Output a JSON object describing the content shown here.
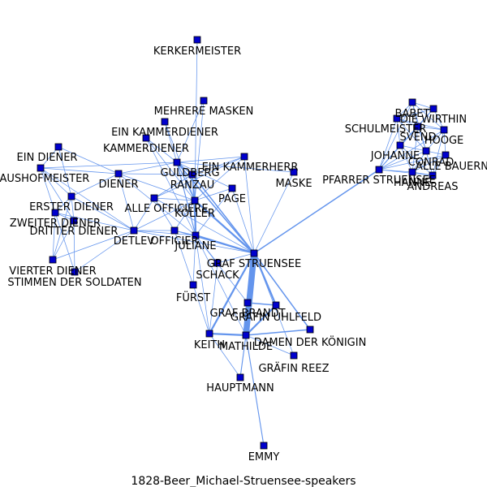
{
  "caption": "1828-Beer_Michael-Struensee-speakers",
  "colors": {
    "edge": "#6495ED",
    "node_fill": "#0000CD",
    "node_stroke": "#000000",
    "background": "#ffffff"
  },
  "nodes": [
    {
      "id": "kerkermeister",
      "label": "KERKERMEISTER"
    },
    {
      "id": "mehrere-masken",
      "label": "MEHRERE MASKEN"
    },
    {
      "id": "ein-kammerdiener",
      "label": "EIN KAMMERDIENER"
    },
    {
      "id": "kammerdiener",
      "label": "KAMMERDIENER"
    },
    {
      "id": "ein-diener",
      "label": "EIN DIENER"
    },
    {
      "id": "haushofmeister",
      "label": "HAUSHOFMEISTER"
    },
    {
      "id": "guldberg",
      "label": "GULDBERG"
    },
    {
      "id": "ein-kammerherr",
      "label": "EIN KAMMERHERR"
    },
    {
      "id": "diener",
      "label": "DIENER"
    },
    {
      "id": "ranzau",
      "label": "RANZAU"
    },
    {
      "id": "maske",
      "label": "MASKE"
    },
    {
      "id": "page",
      "label": "PAGE"
    },
    {
      "id": "erster-diener",
      "label": "ERSTER DIENER"
    },
    {
      "id": "alle-officiere",
      "label": "ALLE OFFICIERE"
    },
    {
      "id": "koller",
      "label": "KÖLLER"
    },
    {
      "id": "zweiter-diener",
      "label": "ZWEITER DIENER"
    },
    {
      "id": "dritter-diener",
      "label": "DRITTER DIENER"
    },
    {
      "id": "detlev",
      "label": "DETLEV"
    },
    {
      "id": "officier",
      "label": "OFFICIER"
    },
    {
      "id": "juliane",
      "label": "JULIANE"
    },
    {
      "id": "graf-struensee",
      "label": "GRAF STRUENSEE"
    },
    {
      "id": "vierter-diener",
      "label": "VIERTER DIENER"
    },
    {
      "id": "stimmen-der-soldaten",
      "label": "STIMMEN DER SOLDATEN"
    },
    {
      "id": "schack",
      "label": "SCHACK"
    },
    {
      "id": "furst",
      "label": "FÜRST"
    },
    {
      "id": "graf-brandt",
      "label": "GRAF BRANDT"
    },
    {
      "id": "grafin-uhlfeld",
      "label": "GRÄFIN UHLFELD"
    },
    {
      "id": "keith",
      "label": "KEITH"
    },
    {
      "id": "mathilde",
      "label": "MATHILDE"
    },
    {
      "id": "damen-der-konigin",
      "label": "DAMEN DER KÖNIGIN"
    },
    {
      "id": "grafin-reez",
      "label": "GRÄFIN REEZ"
    },
    {
      "id": "hauptmann",
      "label": "HAUPTMANN"
    },
    {
      "id": "emmy",
      "label": "EMMY"
    },
    {
      "id": "babet",
      "label": "BABET"
    },
    {
      "id": "die-wirthin",
      "label": "DIE WIRTHIN"
    },
    {
      "id": "schulmeister",
      "label": "SCHULMEISTER"
    },
    {
      "id": "svend",
      "label": "SVEND"
    },
    {
      "id": "hooge",
      "label": "HOOGE"
    },
    {
      "id": "johanne",
      "label": "JOHANNE"
    },
    {
      "id": "conrad",
      "label": "CONRAD"
    },
    {
      "id": "alle-bauern",
      "label": "ALLE BAUERN"
    },
    {
      "id": "pfarrer-struensee",
      "label": "PFARRER STRUENSEE"
    },
    {
      "id": "hanne",
      "label": "HANNE"
    },
    {
      "id": "andreas",
      "label": "ANDREAS"
    }
  ],
  "edges": [
    {
      "source": "graf-struensee",
      "target": "mathilde",
      "weight": 10
    },
    {
      "source": "graf-struensee",
      "target": "graf-brandt",
      "weight": 4
    },
    {
      "source": "graf-brandt",
      "target": "mathilde",
      "weight": 4
    },
    {
      "source": "graf-struensee",
      "target": "keith",
      "weight": 3
    },
    {
      "source": "keith",
      "target": "mathilde",
      "weight": 3
    },
    {
      "source": "graf-struensee",
      "target": "grafin-uhlfeld",
      "weight": 3
    },
    {
      "source": "mathilde",
      "target": "grafin-uhlfeld",
      "weight": 3
    },
    {
      "source": "graf-brandt",
      "target": "grafin-uhlfeld",
      "weight": 2
    },
    {
      "source": "graf-struensee",
      "target": "juliane",
      "weight": 3
    },
    {
      "source": "graf-struensee",
      "target": "koller",
      "weight": 3
    },
    {
      "source": "koller",
      "target": "juliane",
      "weight": 3
    },
    {
      "source": "graf-struensee",
      "target": "ranzau",
      "weight": 2
    },
    {
      "source": "graf-struensee",
      "target": "guldberg",
      "weight": 2
    },
    {
      "source": "graf-struensee",
      "target": "pfarrer-struensee",
      "weight": 2
    },
    {
      "source": "graf-struensee",
      "target": "damen-der-konigin",
      "weight": 2
    },
    {
      "source": "mathilde",
      "target": "damen-der-konigin",
      "weight": 2
    },
    {
      "source": "mathilde",
      "target": "emmy",
      "weight": 1.5
    },
    {
      "source": "mathilde",
      "target": "hauptmann",
      "weight": 1.5
    },
    {
      "source": "mathilde",
      "target": "grafin-reez",
      "weight": 1
    },
    {
      "source": "keith",
      "target": "hauptmann",
      "weight": 1
    },
    {
      "source": "graf-struensee",
      "target": "schack",
      "weight": 1
    },
    {
      "source": "graf-struensee",
      "target": "page",
      "weight": 1
    },
    {
      "source": "graf-struensee",
      "target": "maske",
      "weight": 1
    },
    {
      "source": "graf-struensee",
      "target": "ein-kammerherr",
      "weight": 1
    },
    {
      "source": "graf-struensee",
      "target": "officier",
      "weight": 1
    },
    {
      "source": "graf-struensee",
      "target": "detlev",
      "weight": 1
    },
    {
      "source": "graf-struensee",
      "target": "alle-officiere",
      "weight": 1
    },
    {
      "source": "graf-struensee",
      "target": "grafin-reez",
      "weight": 1
    },
    {
      "source": "juliane",
      "target": "keith",
      "weight": 1
    },
    {
      "source": "juliane",
      "target": "mathilde",
      "weight": 1
    },
    {
      "source": "juliane",
      "target": "graf-brandt",
      "weight": 1
    },
    {
      "source": "juliane",
      "target": "furst",
      "weight": 1
    },
    {
      "source": "juliane",
      "target": "schack",
      "weight": 1
    },
    {
      "source": "juliane",
      "target": "ranzau",
      "weight": 1.5
    },
    {
      "source": "juliane",
      "target": "guldberg",
      "weight": 1.5
    },
    {
      "source": "juliane",
      "target": "officier",
      "weight": 1
    },
    {
      "source": "juliane",
      "target": "detlev",
      "weight": 1
    },
    {
      "source": "koller",
      "target": "ranzau",
      "weight": 1.5
    },
    {
      "source": "koller",
      "target": "guldberg",
      "weight": 1.5
    },
    {
      "source": "koller",
      "target": "alle-officiere",
      "weight": 1
    },
    {
      "source": "koller",
      "target": "officier",
      "weight": 1
    },
    {
      "source": "koller",
      "target": "page",
      "weight": 1
    },
    {
      "source": "ranzau",
      "target": "guldberg",
      "weight": 1.5
    },
    {
      "source": "ranzau",
      "target": "ein-kammerherr",
      "weight": 1
    },
    {
      "source": "ranzau",
      "target": "kammerdiener",
      "weight": 1
    },
    {
      "source": "ranzau",
      "target": "diener",
      "weight": 1
    },
    {
      "source": "ranzau",
      "target": "alle-officiere",
      "weight": 1
    },
    {
      "source": "guldberg",
      "target": "ein-kammerdiener",
      "weight": 1
    },
    {
      "source": "guldberg",
      "target": "mehrere-masken",
      "weight": 1
    },
    {
      "source": "guldberg",
      "target": "kammerdiener",
      "weight": 1
    },
    {
      "source": "guldberg",
      "target": "diener",
      "weight": 1
    },
    {
      "source": "guldberg",
      "target": "page",
      "weight": 1
    },
    {
      "source": "guldberg",
      "target": "ein-kammerherr",
      "weight": 1
    },
    {
      "source": "guldberg",
      "target": "maske",
      "weight": 1
    },
    {
      "source": "kerkermeister",
      "target": "koller",
      "weight": 1
    },
    {
      "source": "mehrere-masken",
      "target": "koller",
      "weight": 1
    },
    {
      "source": "ein-kammerdiener",
      "target": "koller",
      "weight": 1
    },
    {
      "source": "kammerdiener",
      "target": "koller",
      "weight": 1
    },
    {
      "source": "kammerdiener",
      "target": "juliane",
      "weight": 1
    },
    {
      "source": "diener",
      "target": "juliane",
      "weight": 1
    },
    {
      "source": "diener",
      "target": "koller",
      "weight": 1
    },
    {
      "source": "diener",
      "target": "erster-diener",
      "weight": 1
    },
    {
      "source": "diener",
      "target": "haushofmeister",
      "weight": 1
    },
    {
      "source": "diener",
      "target": "ein-diener",
      "weight": 1
    },
    {
      "source": "diener",
      "target": "detlev",
      "weight": 1
    },
    {
      "source": "ein-diener",
      "target": "erster-diener",
      "weight": 1
    },
    {
      "source": "ein-diener",
      "target": "haushofmeister",
      "weight": 1
    },
    {
      "source": "haushofmeister",
      "target": "erster-diener",
      "weight": 1
    },
    {
      "source": "haushofmeister",
      "target": "zweiter-diener",
      "weight": 1
    },
    {
      "source": "haushofmeister",
      "target": "dritter-diener",
      "weight": 1
    },
    {
      "source": "haushofmeister",
      "target": "detlev",
      "weight": 1
    },
    {
      "source": "haushofmeister",
      "target": "guldberg",
      "weight": 1
    },
    {
      "source": "erster-diener",
      "target": "zweiter-diener",
      "weight": 1
    },
    {
      "source": "erster-diener",
      "target": "dritter-diener",
      "weight": 1
    },
    {
      "source": "erster-diener",
      "target": "vierter-diener",
      "weight": 1
    },
    {
      "source": "erster-diener",
      "target": "detlev",
      "weight": 1
    },
    {
      "source": "zweiter-diener",
      "target": "dritter-diener",
      "weight": 1
    },
    {
      "source": "zweiter-diener",
      "target": "vierter-diener",
      "weight": 1
    },
    {
      "source": "zweiter-diener",
      "target": "stimmen-der-soldaten",
      "weight": 1
    },
    {
      "source": "zweiter-diener",
      "target": "detlev",
      "weight": 1
    },
    {
      "source": "dritter-diener",
      "target": "vierter-diener",
      "weight": 1
    },
    {
      "source": "dritter-diener",
      "target": "stimmen-der-soldaten",
      "weight": 1
    },
    {
      "source": "vierter-diener",
      "target": "detlev",
      "weight": 1
    },
    {
      "source": "stimmen-der-soldaten",
      "target": "detlev",
      "weight": 1
    },
    {
      "source": "detlev",
      "target": "koller",
      "weight": 1
    },
    {
      "source": "detlev",
      "target": "officier",
      "weight": 1
    },
    {
      "source": "detlev",
      "target": "alle-officiere",
      "weight": 1
    },
    {
      "source": "alle-officiere",
      "target": "officier",
      "weight": 1
    },
    {
      "source": "alle-officiere",
      "target": "ein-kammerherr",
      "weight": 1
    },
    {
      "source": "officier",
      "target": "furst",
      "weight": 1
    },
    {
      "source": "page",
      "target": "juliane",
      "weight": 1
    },
    {
      "source": "ein-kammerherr",
      "target": "koller",
      "weight": 1
    },
    {
      "source": "schack",
      "target": "keith",
      "weight": 1
    },
    {
      "source": "furst",
      "target": "keith",
      "weight": 1
    },
    {
      "source": "pfarrer-struensee",
      "target": "johanne",
      "weight": 1
    },
    {
      "source": "pfarrer-struensee",
      "target": "hanne",
      "weight": 1
    },
    {
      "source": "pfarrer-struensee",
      "target": "conrad",
      "weight": 1
    },
    {
      "source": "pfarrer-struensee",
      "target": "andreas",
      "weight": 1
    },
    {
      "source": "pfarrer-struensee",
      "target": "alle-bauern",
      "weight": 1
    },
    {
      "source": "pfarrer-struensee",
      "target": "schulmeister",
      "weight": 1
    },
    {
      "source": "pfarrer-struensee",
      "target": "svend",
      "weight": 1
    },
    {
      "source": "pfarrer-struensee",
      "target": "hooge",
      "weight": 1
    },
    {
      "source": "pfarrer-struensee",
      "target": "babet",
      "weight": 1
    },
    {
      "source": "pfarrer-struensee",
      "target": "die-wirthin",
      "weight": 1
    },
    {
      "source": "babet",
      "target": "die-wirthin",
      "weight": 1
    },
    {
      "source": "babet",
      "target": "schulmeister",
      "weight": 1
    },
    {
      "source": "babet",
      "target": "svend",
      "weight": 1
    },
    {
      "source": "babet",
      "target": "hooge",
      "weight": 1
    },
    {
      "source": "babet",
      "target": "conrad",
      "weight": 1
    },
    {
      "source": "die-wirthin",
      "target": "schulmeister",
      "weight": 1
    },
    {
      "source": "die-wirthin",
      "target": "svend",
      "weight": 1
    },
    {
      "source": "die-wirthin",
      "target": "hooge",
      "weight": 1
    },
    {
      "source": "die-wirthin",
      "target": "johanne",
      "weight": 1
    },
    {
      "source": "schulmeister",
      "target": "svend",
      "weight": 1
    },
    {
      "source": "schulmeister",
      "target": "hooge",
      "weight": 1
    },
    {
      "source": "schulmeister",
      "target": "johanne",
      "weight": 1
    },
    {
      "source": "schulmeister",
      "target": "conrad",
      "weight": 1
    },
    {
      "source": "svend",
      "target": "hooge",
      "weight": 1
    },
    {
      "source": "svend",
      "target": "johanne",
      "weight": 1
    },
    {
      "source": "svend",
      "target": "conrad",
      "weight": 1
    },
    {
      "source": "svend",
      "target": "hanne",
      "weight": 1
    },
    {
      "source": "hooge",
      "target": "conrad",
      "weight": 1
    },
    {
      "source": "hooge",
      "target": "alle-bauern",
      "weight": 1
    },
    {
      "source": "hooge",
      "target": "andreas",
      "weight": 1
    },
    {
      "source": "johanne",
      "target": "conrad",
      "weight": 1
    },
    {
      "source": "johanne",
      "target": "hanne",
      "weight": 1
    },
    {
      "source": "johanne",
      "target": "andreas",
      "weight": 1
    },
    {
      "source": "conrad",
      "target": "alle-bauern",
      "weight": 1
    },
    {
      "source": "conrad",
      "target": "hanne",
      "weight": 1
    },
    {
      "source": "conrad",
      "target": "andreas",
      "weight": 1
    },
    {
      "source": "alle-bauern",
      "target": "hanne",
      "weight": 1
    },
    {
      "source": "alle-bauern",
      "target": "andreas",
      "weight": 1
    },
    {
      "source": "hanne",
      "target": "andreas",
      "weight": 1
    }
  ]
}
